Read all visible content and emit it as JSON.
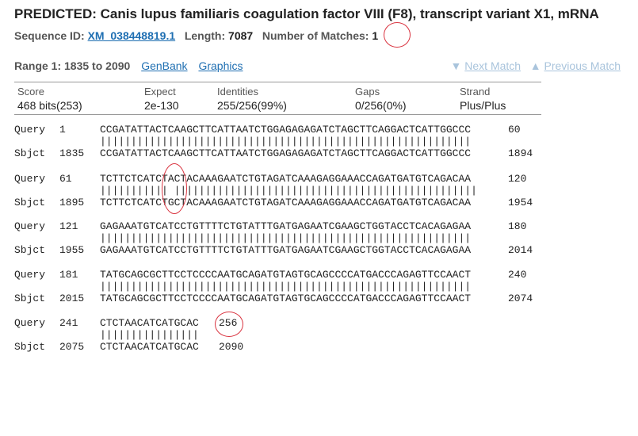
{
  "header": {
    "title": "PREDICTED: Canis lupus familiaris coagulation factor VIII (F8), transcript variant X1, mRNA",
    "seq_id_label": "Sequence ID:",
    "seq_id": "XM_038448819.1",
    "length_label": "Length:",
    "length": "7087",
    "matches_label": "Number of Matches:",
    "matches": "1"
  },
  "range": {
    "label": "Range 1: 1835 to 2090",
    "genbank": "GenBank",
    "graphics": "Graphics",
    "next": "Next Match",
    "previous": "Previous Match",
    "next_arrow": "▼",
    "previous_arrow": "▲"
  },
  "stats": {
    "score_h": "Score",
    "score_v": "468 bits(253)",
    "expect_h": "Expect",
    "expect_v": "2e-130",
    "ident_h": "Identities",
    "ident_v": "255/256(99%)",
    "gaps_h": "Gaps",
    "gaps_v": "0/256(0%)",
    "strand_h": "Strand",
    "strand_v": "Plus/Plus"
  },
  "alignment": [
    {
      "q_label": "Query",
      "q_start": "1",
      "q_seq": "CCGATATTACTCAAGCTTCATTAATCTGGAGAGAGATCTAGCTTCAGGACTCATTGGCCC",
      "q_end": "60",
      "mid": "||||||||||||||||||||||||||||||||||||||||||||||||||||||||||||",
      "s_label": "Sbjct",
      "s_start": "1835",
      "s_seq": "CCGATATTACTCAAGCTTCATTAATCTGGAGAGAGATCTAGCTTCAGGACTCATTGGCCC",
      "s_end": "1894"
    },
    {
      "q_label": "Query",
      "q_start": "61",
      "q_seq": "TCTTCTCATCTACTACAAAGAATCTGTAGATCAAAGAGGAAACCAGATGATGTCAGACAA",
      "q_end": "120",
      "mid": "||||||||||| |||||||||||||||||||||||||||||||||||||||||||||||||",
      "s_label": "Sbjct",
      "s_start": "1895",
      "s_seq": "TCTTCTCATCTGCTACAAAGAATCTGTAGATCAAAGAGGAAACCAGATGATGTCAGACAA",
      "s_end": "1954"
    },
    {
      "q_label": "Query",
      "q_start": "121",
      "q_seq": "GAGAAATGTCATCCTGTTTTCTGTATTTGATGAGAATCGAAGCTGGTACCTCACAGAGAA",
      "q_end": "180",
      "mid": "||||||||||||||||||||||||||||||||||||||||||||||||||||||||||||",
      "s_label": "Sbjct",
      "s_start": "1955",
      "s_seq": "GAGAAATGTCATCCTGTTTTCTGTATTTGATGAGAATCGAAGCTGGTACCTCACAGAGAA",
      "s_end": "2014"
    },
    {
      "q_label": "Query",
      "q_start": "181",
      "q_seq": "TATGCAGCGCTTCCTCCCCAATGCAGATGTAGTGCAGCCCCATGACCCAGAGTTCCAACT",
      "q_end": "240",
      "mid": "||||||||||||||||||||||||||||||||||||||||||||||||||||||||||||",
      "s_label": "Sbjct",
      "s_start": "2015",
      "s_seq": "TATGCAGCGCTTCCTCCCCAATGCAGATGTAGTGCAGCCCCATGACCCAGAGTTCCAACT",
      "s_end": "2074"
    },
    {
      "q_label": "Query",
      "q_start": "241",
      "q_seq": "CTCTAACATCATGCAC",
      "q_end": "256",
      "mid": "||||||||||||||||",
      "s_label": "Sbjct",
      "s_start": "2075",
      "s_seq": "CTCTAACATCATGCAC",
      "s_end": "2090"
    }
  ],
  "annotation_color": "#d9333f"
}
